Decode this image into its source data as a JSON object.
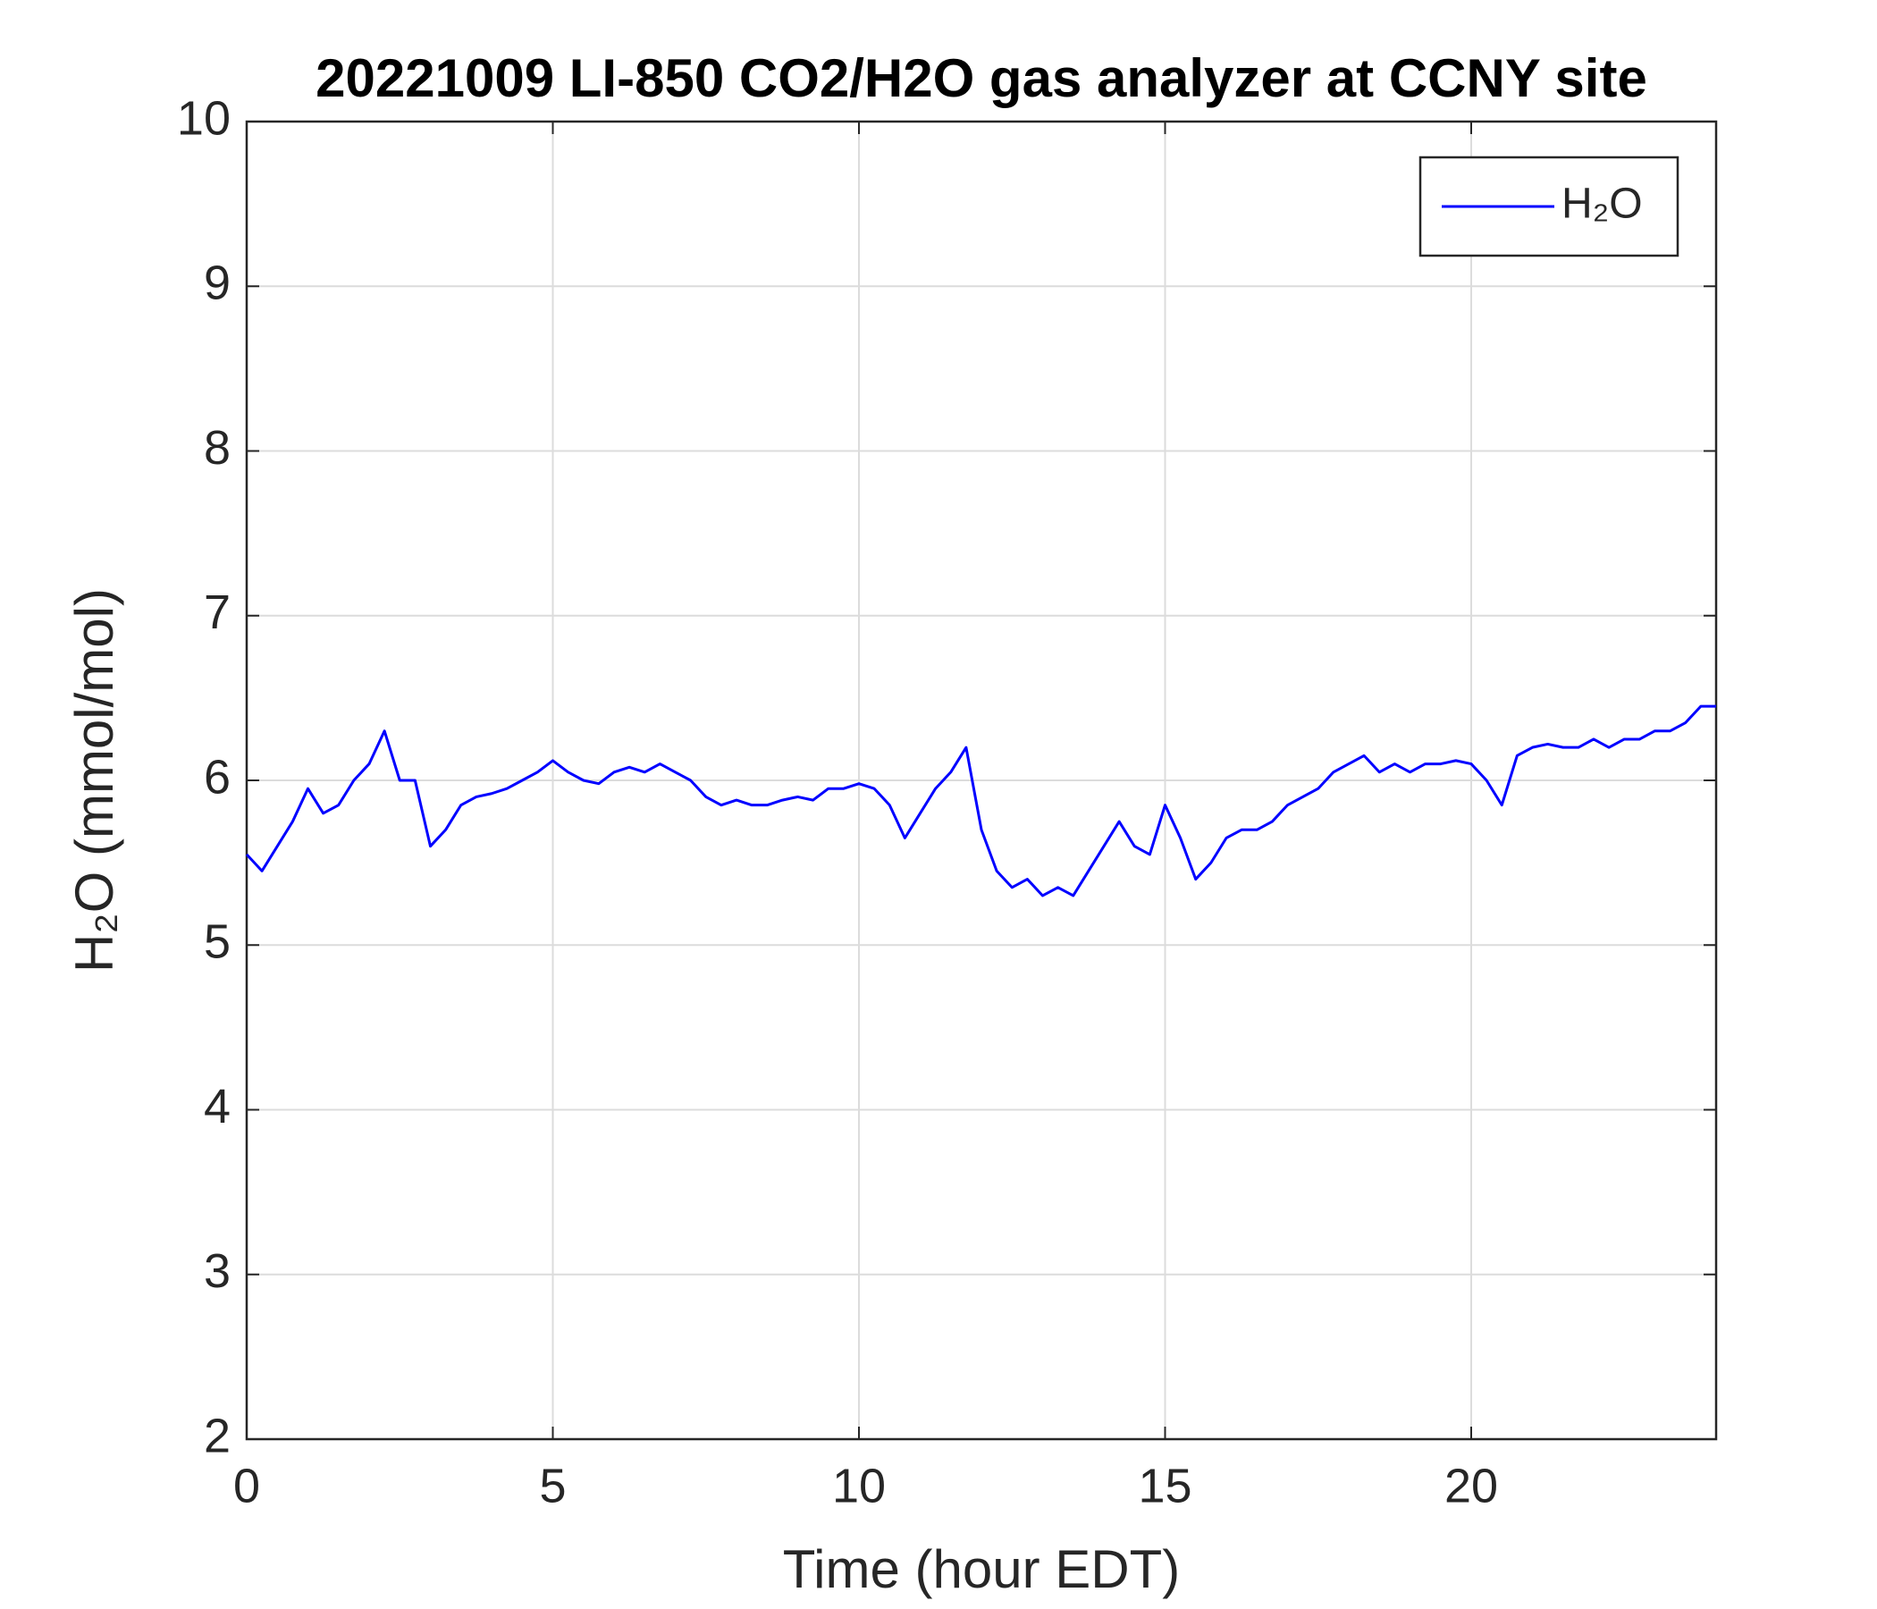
{
  "chart_data": {
    "type": "line",
    "title": "20221009 LI-850 CO2/H2O gas analyzer at CCNY site",
    "xlabel": "Time (hour EDT)",
    "ylabel": "H₂O (mmol/mol)",
    "x": [
      0,
      0.25,
      0.5,
      0.75,
      1,
      1.25,
      1.5,
      1.75,
      2,
      2.25,
      2.5,
      2.75,
      3,
      3.25,
      3.5,
      3.75,
      4,
      4.25,
      4.5,
      4.75,
      5,
      5.25,
      5.5,
      5.75,
      6,
      6.25,
      6.5,
      6.75,
      7,
      7.25,
      7.5,
      7.75,
      8,
      8.25,
      8.5,
      8.75,
      9,
      9.25,
      9.5,
      9.75,
      10,
      10.25,
      10.5,
      10.75,
      11,
      11.25,
      11.5,
      11.75,
      12,
      12.25,
      12.5,
      12.75,
      13,
      13.25,
      13.5,
      13.75,
      14,
      14.25,
      14.5,
      14.75,
      15,
      15.25,
      15.5,
      15.75,
      16,
      16.25,
      16.5,
      16.75,
      17,
      17.25,
      17.5,
      17.75,
      18,
      18.25,
      18.5,
      18.75,
      19,
      19.25,
      19.5,
      19.75,
      20,
      20.25,
      20.5,
      20.75,
      21,
      21.25,
      21.5,
      21.75,
      22,
      22.25,
      22.5,
      22.75,
      23,
      23.25,
      23.5,
      23.75,
      24
    ],
    "series": [
      {
        "name": "H₂O",
        "color": "#0000ff",
        "values": [
          5.55,
          5.45,
          5.6,
          5.75,
          5.95,
          5.8,
          5.85,
          6.0,
          6.1,
          6.3,
          6.0,
          6.0,
          5.6,
          5.7,
          5.85,
          5.9,
          5.92,
          5.95,
          6.0,
          6.05,
          6.12,
          6.05,
          6.0,
          5.98,
          6.05,
          6.08,
          6.05,
          6.1,
          6.05,
          6.0,
          5.9,
          5.85,
          5.88,
          5.85,
          5.85,
          5.88,
          5.9,
          5.88,
          5.95,
          5.95,
          5.98,
          5.95,
          5.85,
          5.65,
          5.8,
          5.95,
          6.05,
          6.2,
          5.7,
          5.45,
          5.35,
          5.4,
          5.3,
          5.35,
          5.3,
          5.45,
          5.6,
          5.75,
          5.6,
          5.55,
          5.85,
          5.65,
          5.4,
          5.5,
          5.65,
          5.7,
          5.7,
          5.75,
          5.85,
          5.9,
          5.95,
          6.05,
          6.1,
          6.15,
          6.05,
          6.1,
          6.05,
          6.1,
          6.1,
          6.12,
          6.1,
          6.0,
          5.85,
          6.15,
          6.2,
          6.22,
          6.2,
          6.2,
          6.25,
          6.2,
          6.25,
          6.25,
          6.3,
          6.3,
          6.35,
          6.45,
          6.45
        ]
      }
    ],
    "xlim": [
      0,
      24
    ],
    "xticks": [
      0,
      5,
      10,
      15,
      20
    ],
    "ylim": [
      2,
      10
    ],
    "yticks": [
      2,
      3,
      4,
      5,
      6,
      7,
      8,
      9,
      10
    ],
    "grid": true,
    "legend": "top-right"
  }
}
